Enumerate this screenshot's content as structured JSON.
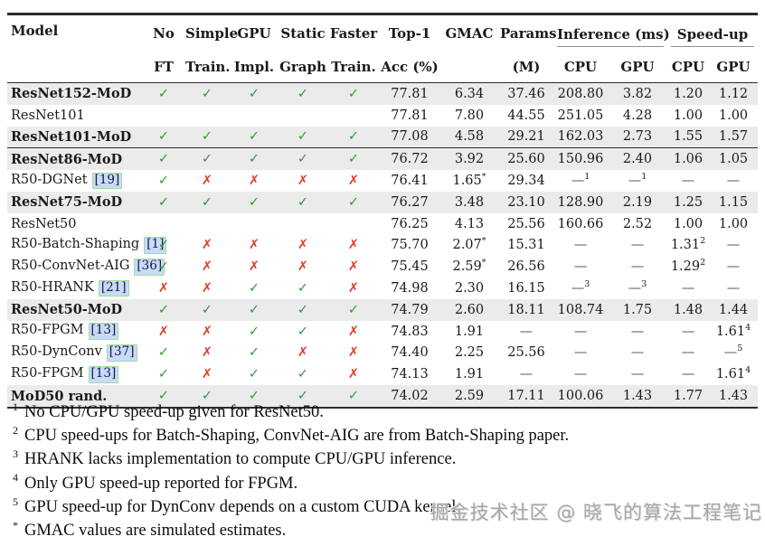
{
  "table": {
    "header": {
      "col_model": "Model",
      "groups": [
        {
          "line1": "No",
          "line2": "FT"
        },
        {
          "line1": "Simple",
          "line2": "Train."
        },
        {
          "line1": "GPU",
          "line2": "Impl."
        },
        {
          "line1": "Static",
          "line2": "Graph"
        },
        {
          "line1": "Faster",
          "line2": "Train."
        },
        {
          "line1": "Top-1",
          "line2": "Acc (%)"
        },
        {
          "line1": "GMAC",
          "line2": ""
        },
        {
          "line1": "Params",
          "line2": "(M)"
        }
      ],
      "spans": [
        {
          "label": "Inference (ms)",
          "sub": [
            "CPU",
            "GPU"
          ]
        },
        {
          "label": "Speed-up",
          "sub": [
            "CPU",
            "GPU"
          ]
        }
      ]
    },
    "rows": [
      {
        "model": "ResNet152-MoD",
        "bold": true,
        "shaded": true,
        "cite": null,
        "marks": [
          "y",
          "y",
          "y",
          "y",
          "y"
        ],
        "values": [
          "77.81",
          "6.34",
          "37.46",
          "208.80",
          "3.82",
          "1.20",
          "1.12"
        ],
        "rule_after": false
      },
      {
        "model": "ResNet101",
        "bold": false,
        "shaded": false,
        "cite": null,
        "marks": [
          "",
          "",
          "",
          "",
          ""
        ],
        "values": [
          "77.81",
          "7.80",
          "44.55",
          "251.05",
          "4.28",
          "1.00",
          "1.00"
        ],
        "rule_after": false
      },
      {
        "model": "ResNet101-MoD",
        "bold": true,
        "shaded": true,
        "cite": null,
        "marks": [
          "y",
          "y",
          "y",
          "y",
          "y"
        ],
        "values": [
          "77.08",
          "4.58",
          "29.21",
          "162.03",
          "2.73",
          "1.55",
          "1.57"
        ],
        "rule_after": true
      },
      {
        "model": "ResNet86-MoD",
        "bold": true,
        "shaded": true,
        "cite": null,
        "marks": [
          "y",
          "y",
          "y",
          "y",
          "y"
        ],
        "values": [
          "76.72",
          "3.92",
          "25.60",
          "150.96",
          "2.40",
          "1.06",
          "1.05"
        ],
        "rule_after": false
      },
      {
        "model": "R50-DGNet",
        "bold": false,
        "shaded": false,
        "cite": "19",
        "marks": [
          "y",
          "n",
          "n",
          "n",
          "n"
        ],
        "values": [
          "76.41",
          "1.65^*",
          "29.34",
          "—^1",
          "—^1",
          "—",
          "—"
        ],
        "rule_after": false
      },
      {
        "model": "ResNet75-MoD",
        "bold": true,
        "shaded": true,
        "cite": null,
        "marks": [
          "y",
          "y",
          "y",
          "y",
          "y"
        ],
        "values": [
          "76.27",
          "3.48",
          "23.10",
          "128.90",
          "2.19",
          "1.25",
          "1.15"
        ],
        "rule_after": false
      },
      {
        "model": "ResNet50",
        "bold": false,
        "shaded": false,
        "cite": null,
        "marks": [
          "",
          "",
          "",
          "",
          ""
        ],
        "values": [
          "76.25",
          "4.13",
          "25.56",
          "160.66",
          "2.52",
          "1.00",
          "1.00"
        ],
        "rule_after": false
      },
      {
        "model": "R50-Batch-Shaping",
        "bold": false,
        "shaded": false,
        "cite": "1",
        "marks": [
          "y",
          "n",
          "n",
          "n",
          "n"
        ],
        "values": [
          "75.70",
          "2.07^*",
          "15.31",
          "—",
          "—",
          "1.31^2",
          "—"
        ],
        "rule_after": false
      },
      {
        "model": "R50-ConvNet-AIG",
        "bold": false,
        "shaded": false,
        "cite": "36",
        "marks": [
          "y",
          "n",
          "n",
          "n",
          "n"
        ],
        "values": [
          "75.45",
          "2.59^*",
          "26.56",
          "—",
          "—",
          "1.29^2",
          "—"
        ],
        "rule_after": false
      },
      {
        "model": "R50-HRANK",
        "bold": false,
        "shaded": false,
        "cite": "21",
        "marks": [
          "n",
          "n",
          "y",
          "y",
          "n"
        ],
        "values": [
          "74.98",
          "2.30",
          "16.15",
          "—^3",
          "—^3",
          "—",
          "—"
        ],
        "rule_after": false
      },
      {
        "model": "ResNet50-MoD",
        "bold": true,
        "shaded": true,
        "cite": null,
        "marks": [
          "y",
          "y",
          "y",
          "y",
          "y"
        ],
        "values": [
          "74.79",
          "2.60",
          "18.11",
          "108.74",
          "1.75",
          "1.48",
          "1.44"
        ],
        "rule_after": false
      },
      {
        "model": "R50-FPGM",
        "bold": false,
        "shaded": false,
        "cite": "13",
        "marks": [
          "n",
          "n",
          "y",
          "y",
          "n"
        ],
        "values": [
          "74.83",
          "1.91",
          "—",
          "—",
          "—",
          "—",
          "1.61^4"
        ],
        "rule_after": false
      },
      {
        "model": "R50-DynConv",
        "bold": false,
        "shaded": false,
        "cite": "37",
        "marks": [
          "y",
          "n",
          "y",
          "n",
          "n"
        ],
        "values": [
          "74.40",
          "2.25",
          "25.56",
          "—",
          "—",
          "—",
          "—^5"
        ],
        "rule_after": false
      },
      {
        "model": "R50-FPGM",
        "bold": false,
        "shaded": false,
        "cite": "13",
        "marks": [
          "y",
          "n",
          "y",
          "y",
          "n"
        ],
        "values": [
          "74.13",
          "1.91",
          "—",
          "—",
          "—",
          "—",
          "1.61^4"
        ],
        "rule_after": false
      },
      {
        "model": "MoD50 rand.",
        "bold": true,
        "shaded": true,
        "cite": null,
        "marks": [
          "y",
          "y",
          "y",
          "y",
          "y"
        ],
        "values": [
          "74.02",
          "2.59",
          "17.11",
          "100.06",
          "1.43",
          "1.77",
          "1.43"
        ],
        "rule_after": false
      }
    ]
  },
  "footnotes": [
    {
      "sup": "1",
      "text": "No CPU/GPU speed-up given for ResNet50."
    },
    {
      "sup": "2",
      "text": "CPU speed-ups for Batch-Shaping, ConvNet-AIG are from Batch-Shaping paper."
    },
    {
      "sup": "3",
      "text": "HRANK lacks implementation to compute CPU/GPU inference."
    },
    {
      "sup": "4",
      "text": "Only GPU speed-up reported for FPGM."
    },
    {
      "sup": "5",
      "text": "GPU speed-up for DynConv depends on a custom CUDA kernel."
    },
    {
      "sup": "*",
      "text": "GMAC values are simulated estimates."
    }
  ],
  "watermark": "掘金技术社区 @ 晓飞的算法工程笔记",
  "icons": {
    "check": "✓",
    "cross": "✗"
  },
  "colors": {
    "check-green": "#2e9c33",
    "cross-red": "#e2402c",
    "row-shade": "#ebebeb",
    "cite-bg": "#c9dbf4",
    "cite-border": "#9edd9e",
    "rule-dark": "#2b2b2b",
    "cmidrule-gray": "#909090",
    "dash-gray": "#555555",
    "watermark-gray": "#a3a3a3"
  }
}
